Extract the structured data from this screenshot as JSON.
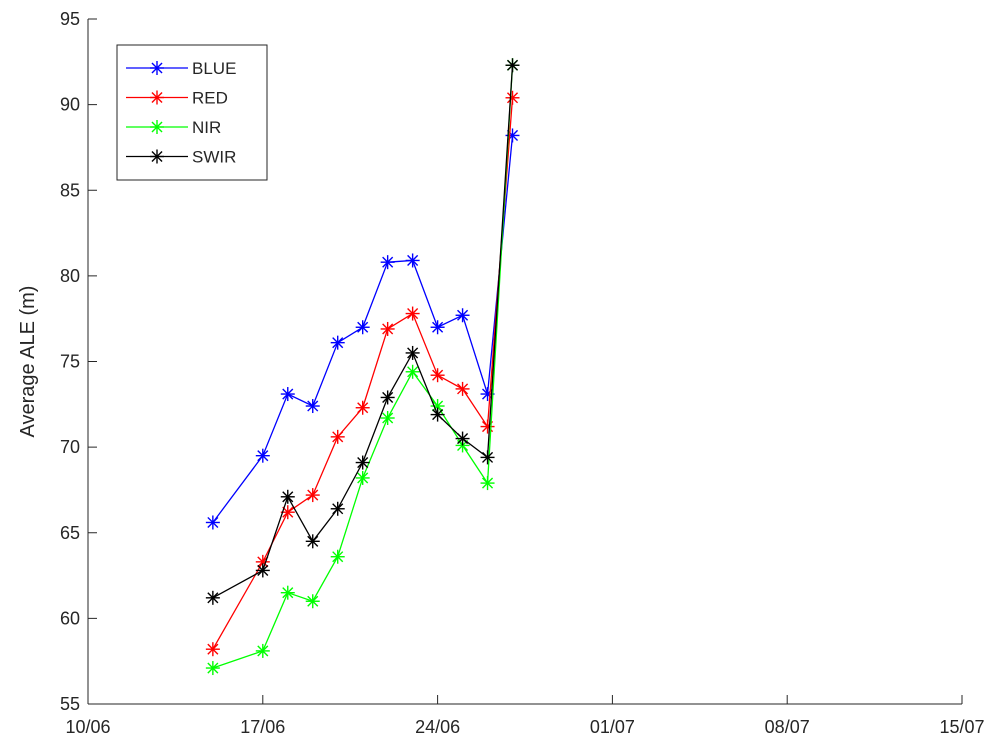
{
  "chart_data": {
    "type": "line",
    "title": "",
    "xlabel": "",
    "ylabel": "Average ALE (m)",
    "x_ticks": [
      "10/06",
      "17/06",
      "24/06",
      "01/07",
      "08/07",
      "15/07"
    ],
    "x_tick_dates": [
      "2019-06-10",
      "2019-06-17",
      "2019-06-24",
      "2019-07-01",
      "2019-07-08",
      "2019-07-15"
    ],
    "xlim": [
      "2019-06-10",
      "2019-07-15"
    ],
    "ylim": [
      55,
      95
    ],
    "y_ticks": [
      55,
      60,
      65,
      70,
      75,
      80,
      85,
      90,
      95
    ],
    "grid": false,
    "legend_position": "top-left",
    "x": [
      "2019-06-15",
      "2019-06-17",
      "2019-06-18",
      "2019-06-19",
      "2019-06-20",
      "2019-06-21",
      "2019-06-22",
      "2019-06-23",
      "2019-06-24",
      "2019-06-25",
      "2019-06-26",
      "2019-06-27"
    ],
    "series": [
      {
        "name": "BLUE",
        "color": "#0000ff",
        "values": [
          65.6,
          69.5,
          73.1,
          72.4,
          76.1,
          77.0,
          80.8,
          80.9,
          77.0,
          77.7,
          73.1,
          88.2
        ]
      },
      {
        "name": "RED",
        "color": "#ff0000",
        "values": [
          58.2,
          63.3,
          66.2,
          67.2,
          70.6,
          72.3,
          76.9,
          77.8,
          74.2,
          73.4,
          71.2,
          90.4
        ]
      },
      {
        "name": "NIR",
        "color": "#00ff00",
        "values": [
          57.1,
          58.1,
          61.5,
          61.0,
          63.6,
          68.2,
          71.7,
          74.4,
          72.4,
          70.1,
          67.9,
          92.3
        ]
      },
      {
        "name": "SWIR",
        "color": "#000000",
        "values": [
          61.2,
          62.8,
          67.1,
          64.5,
          66.4,
          69.1,
          72.9,
          75.5,
          71.9,
          70.5,
          69.4,
          92.3
        ]
      }
    ]
  }
}
